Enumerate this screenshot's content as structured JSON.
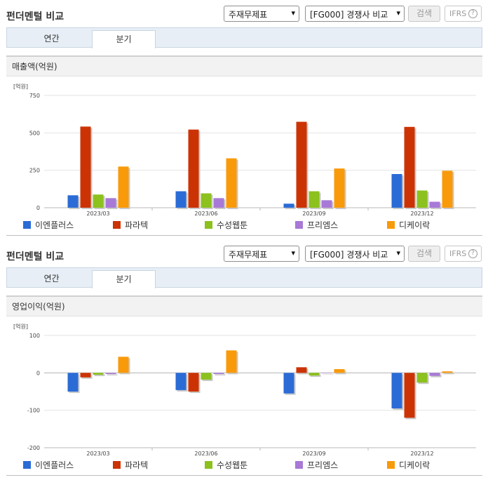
{
  "panels": [
    {
      "title": "펀더멘털 비교",
      "select1": "주재무제표",
      "select2": "[FG000] 경쟁사 비교",
      "search_label": "검색",
      "ifrs_label": "IFRS",
      "ifrs_help": "?",
      "tabs": [
        "연간",
        "분기"
      ],
      "active_tab": "분기",
      "chart_title": "매출액(억원)"
    },
    {
      "title": "펀더멘털 비교",
      "select1": "주재무제표",
      "select2": "[FG000] 경쟁사 비교",
      "search_label": "검색",
      "ifrs_label": "IFRS",
      "ifrs_help": "?",
      "tabs": [
        "연간",
        "분기"
      ],
      "active_tab": "분기",
      "chart_title": "영업이익(억원)"
    }
  ],
  "legend": [
    {
      "name": "이엔플러스",
      "color": "#2b6bd6"
    },
    {
      "name": "파라텍",
      "color": "#cc3304"
    },
    {
      "name": "수성웹툰",
      "color": "#8cc11e"
    },
    {
      "name": "프리엠스",
      "color": "#a879d6"
    },
    {
      "name": "디케이락",
      "color": "#f99a0a"
    }
  ],
  "chart_data": [
    {
      "type": "bar",
      "title": "매출액(억원)",
      "unit_label": "[억원]",
      "categories": [
        "2023/03",
        "2023/06",
        "2023/09",
        "2023/12"
      ],
      "ylim": [
        0,
        750
      ],
      "yticks": [
        0,
        250,
        500,
        750
      ],
      "grid": true,
      "legend_position": "bottom",
      "series": [
        {
          "name": "이엔플러스",
          "values": [
            83,
            110,
            27,
            225
          ]
        },
        {
          "name": "파라텍",
          "values": [
            542,
            522,
            574,
            540
          ]
        },
        {
          "name": "수성웹툰",
          "values": [
            88,
            96,
            110,
            115
          ]
        },
        {
          "name": "프리엠스",
          "values": [
            64,
            64,
            50,
            40
          ]
        },
        {
          "name": "디케이락",
          "values": [
            275,
            330,
            262,
            247
          ]
        }
      ]
    },
    {
      "type": "bar",
      "title": "영업이익(억원)",
      "unit_label": "[억원]",
      "categories": [
        "2023/03",
        "2023/06",
        "2023/09",
        "2023/12"
      ],
      "ylim": [
        -200,
        100
      ],
      "yticks": [
        -200,
        -100,
        0,
        100
      ],
      "grid": true,
      "legend_position": "bottom",
      "series": [
        {
          "name": "이엔플러스",
          "values": [
            -50,
            -46,
            -55,
            -95
          ]
        },
        {
          "name": "파라텍",
          "values": [
            -12,
            -50,
            15,
            -120
          ]
        },
        {
          "name": "수성웹툰",
          "values": [
            -5,
            -18,
            -7,
            -26
          ]
        },
        {
          "name": "프리엠스",
          "values": [
            -3,
            -3,
            0,
            -8
          ]
        },
        {
          "name": "디케이락",
          "values": [
            43,
            60,
            10,
            4
          ]
        }
      ]
    }
  ]
}
